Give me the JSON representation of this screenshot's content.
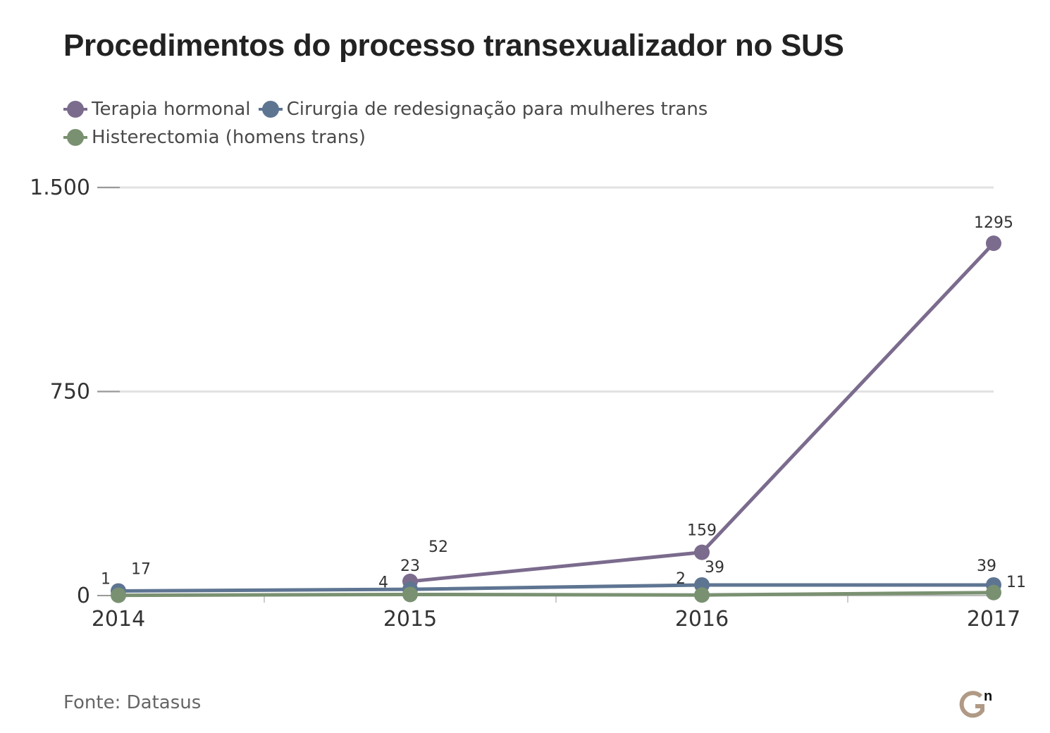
{
  "title": "Procedimentos do processo transexualizador no SUS",
  "source": "Fonte: Datasus",
  "logo": {
    "icon": "gn-logo-icon"
  },
  "chart_data": {
    "type": "line",
    "title": "Procedimentos do processo transexualizador no SUS",
    "xlabel": "",
    "ylabel": "",
    "x": [
      "2014",
      "2015",
      "2016",
      "2017"
    ],
    "ylim": [
      0,
      1500
    ],
    "yticks": [
      0,
      750,
      1500
    ],
    "ytick_labels": [
      "0",
      "750",
      "1.500"
    ],
    "grid": true,
    "legend_position": "top-left",
    "series": [
      {
        "name": "Terapia hormonal",
        "color": "#7b6b8d",
        "values": [
          null,
          52,
          159,
          1295
        ],
        "labels": [
          "",
          "52",
          "159",
          "1295"
        ]
      },
      {
        "name": "Cirurgia de redesignação para mulheres trans",
        "color": "#5e7592",
        "values": [
          17,
          23,
          39,
          39
        ],
        "labels": [
          "17",
          "23",
          "39",
          "39"
        ]
      },
      {
        "name": "Histerectomia (homens trans)",
        "color": "#7a9171",
        "values": [
          1,
          4,
          2,
          11
        ],
        "labels": [
          "1",
          "4",
          "2",
          "11"
        ]
      }
    ]
  }
}
